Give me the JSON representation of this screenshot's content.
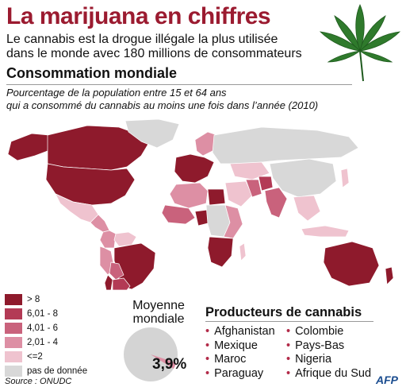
{
  "header": {
    "title": "La marijuana en chiffres",
    "subtitle_line1": "Le cannabis est la drogue illégale la plus utilisée",
    "subtitle_line2": "dans le monde avec 180 millions de consommateurs"
  },
  "section": {
    "title": "Consommation mondiale",
    "desc_line1": "Pourcentage de la population entre 15 et 64 ans",
    "desc_line2": "qui a consommé du cannabis au moins une fois dans l’année (2010)"
  },
  "legend": [
    {
      "label": "> 8",
      "color": "#8e1a2c"
    },
    {
      "label": "6,01 - 8",
      "color": "#b33a55"
    },
    {
      "label": "4,01 - 6",
      "color": "#c9627c"
    },
    {
      "label": "2,01 - 4",
      "color": "#dd8fa4"
    },
    {
      "label": "<=2",
      "color": "#efc3cf"
    },
    {
      "label": "pas de donnée",
      "color": "#d8d8d8"
    }
  ],
  "average": {
    "label_line1": "Moyenne",
    "label_line2": "mondiale",
    "value_text": "3,9%",
    "value_percent": 3.9,
    "slice_color": "#dd8fa4",
    "rest_color": "#d4d4d4"
  },
  "producers": {
    "title": "Producteurs de cannabis",
    "col1": [
      "Afghanistan",
      "Mexique",
      "Maroc",
      "Paraguay"
    ],
    "col2": [
      "Colombie",
      "Pays-Bas",
      "Nigeria",
      "Afrique du Sud"
    ]
  },
  "footer": {
    "source": "Source : ONUDC",
    "agency": "AFP"
  },
  "map_regions": [
    {
      "name": "Canada",
      "color": "#8e1a2c"
    },
    {
      "name": "Alaska",
      "color": "#8e1a2c"
    },
    {
      "name": "États-Unis",
      "color": "#8e1a2c"
    },
    {
      "name": "Groenland",
      "color": "#d8d8d8"
    },
    {
      "name": "Mexique",
      "color": "#efc3cf"
    },
    {
      "name": "Amérique centrale",
      "color": "#dd8fa4"
    },
    {
      "name": "Colombie",
      "color": "#dd8fa4"
    },
    {
      "name": "Venezuela",
      "color": "#efc3cf"
    },
    {
      "name": "Brésil",
      "color": "#8e1a2c"
    },
    {
      "name": "Pérou",
      "color": "#dd8fa4"
    },
    {
      "name": "Bolivie",
      "color": "#c9627c"
    },
    {
      "name": "Argentine",
      "color": "#b33a55"
    },
    {
      "name": "Chili",
      "color": "#8e1a2c"
    },
    {
      "name": "Europe de l'Ouest",
      "color": "#8e1a2c"
    },
    {
      "name": "Scandinavie",
      "color": "#dd8fa4"
    },
    {
      "name": "Russie",
      "color": "#d8d8d8"
    },
    {
      "name": "Kazakhstan",
      "color": "#efc3cf"
    },
    {
      "name": "Afrique du Nord",
      "color": "#dd8fa4"
    },
    {
      "name": "Afrique de l'Ouest",
      "color": "#c9627c"
    },
    {
      "name": "Nigeria",
      "color": "#8e1a2c"
    },
    {
      "name": "Afrique centrale",
      "color": "#d8d8d8"
    },
    {
      "name": "Afrique de l'Est",
      "color": "#dd8fa4"
    },
    {
      "name": "Afrique australe",
      "color": "#8e1a2c"
    },
    {
      "name": "Madagascar",
      "color": "#efc3cf"
    },
    {
      "name": "Moyen-Orient",
      "color": "#efc3cf"
    },
    {
      "name": "Égypte",
      "color": "#8e1a2c"
    },
    {
      "name": "Iran",
      "color": "#c9627c"
    },
    {
      "name": "Afghanistan",
      "color": "#b33a55"
    },
    {
      "name": "Inde",
      "color": "#c9627c"
    },
    {
      "name": "Chine",
      "color": "#d8d8d8"
    },
    {
      "name": "Asie du Sud-Est",
      "color": "#efc3cf"
    },
    {
      "name": "Japon",
      "color": "#efc3cf"
    },
    {
      "name": "Indonésie",
      "color": "#efc3cf"
    },
    {
      "name": "Australie",
      "color": "#8e1a2c"
    },
    {
      "name": "Nouvelle-Zélande",
      "color": "#8e1a2c"
    }
  ]
}
